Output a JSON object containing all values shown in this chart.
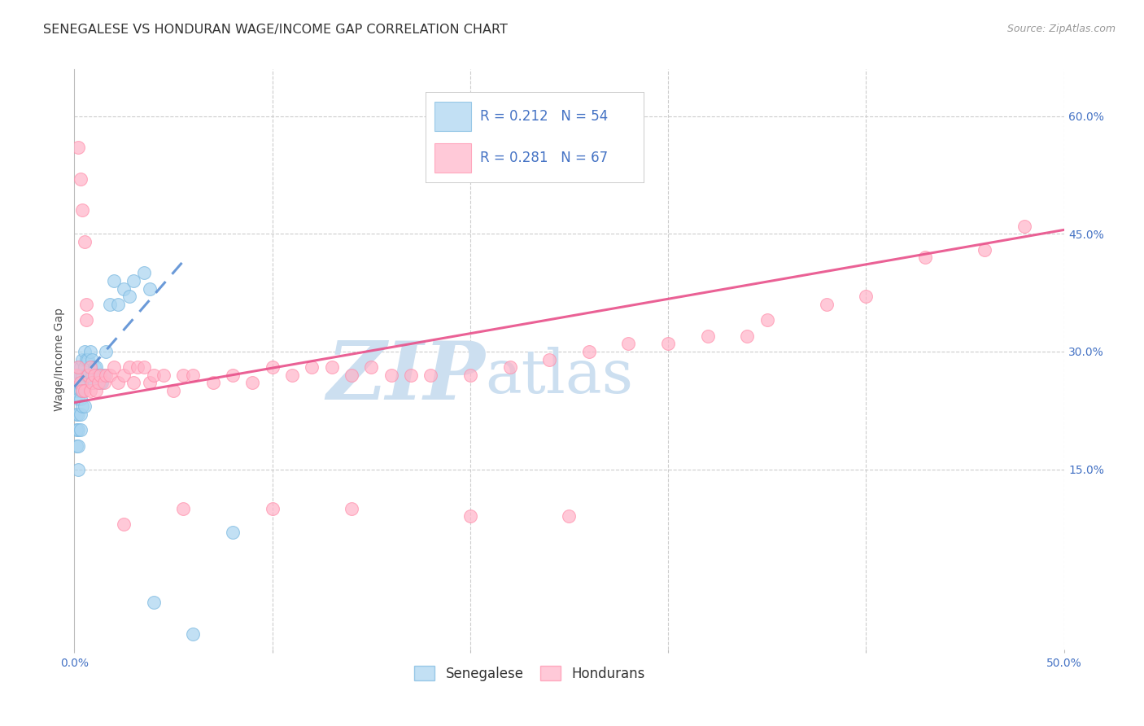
{
  "title": "SENEGALESE VS HONDURAN WAGE/INCOME GAP CORRELATION CHART",
  "source": "Source: ZipAtlas.com",
  "ylabel": "Wage/Income Gap",
  "xlim": [
    0.0,
    0.5
  ],
  "ylim": [
    -0.08,
    0.66
  ],
  "xticks": [
    0.0,
    0.1,
    0.2,
    0.3,
    0.4,
    0.5
  ],
  "xtick_labels_show": [
    "0.0%",
    "",
    "",
    "",
    "",
    "50.0%"
  ],
  "ytick_positions": [
    0.15,
    0.3,
    0.45,
    0.6
  ],
  "ytick_labels": [
    "15.0%",
    "30.0%",
    "45.0%",
    "60.0%"
  ],
  "sen_color": "#a8d4f0",
  "hon_color": "#ffb3c8",
  "sen_edge": "#7ab8e0",
  "hon_edge": "#ff8fab",
  "sen_trend_color": "#5b8fd4",
  "hon_trend_color": "#e8508a",
  "bg_color": "#ffffff",
  "grid_color": "#cccccc",
  "title_color": "#333333",
  "source_color": "#999999",
  "axis_tick_color": "#4472c4",
  "legend_text_color": "#4472c4",
  "watermark_color": "#ccdff0",
  "sen_R": "0.212",
  "sen_N": "54",
  "hon_R": "0.281",
  "hon_N": "67",
  "title_fontsize": 11.5,
  "source_fontsize": 9,
  "tick_fontsize": 10,
  "ylabel_fontsize": 10,
  "legend_fontsize": 12,
  "watermark_zip_size": 72,
  "watermark_atlas_size": 72,
  "sen_x": [
    0.001,
    0.001,
    0.001,
    0.001,
    0.001,
    0.002,
    0.002,
    0.002,
    0.002,
    0.002,
    0.002,
    0.002,
    0.003,
    0.003,
    0.003,
    0.003,
    0.003,
    0.003,
    0.004,
    0.004,
    0.004,
    0.004,
    0.005,
    0.005,
    0.005,
    0.005,
    0.006,
    0.006,
    0.007,
    0.007,
    0.008,
    0.008,
    0.008,
    0.009,
    0.009,
    0.01,
    0.01,
    0.011,
    0.012,
    0.013,
    0.014,
    0.015,
    0.016,
    0.018,
    0.02,
    0.022,
    0.025,
    0.028,
    0.03,
    0.035,
    0.038,
    0.04,
    0.06,
    0.08
  ],
  "sen_y": [
    0.27,
    0.25,
    0.22,
    0.2,
    0.18,
    0.28,
    0.26,
    0.24,
    0.22,
    0.2,
    0.18,
    0.15,
    0.28,
    0.27,
    0.25,
    0.24,
    0.22,
    0.2,
    0.29,
    0.27,
    0.25,
    0.23,
    0.3,
    0.28,
    0.26,
    0.23,
    0.29,
    0.27,
    0.29,
    0.27,
    0.3,
    0.28,
    0.26,
    0.29,
    0.27,
    0.28,
    0.26,
    0.28,
    0.27,
    0.26,
    0.26,
    0.27,
    0.3,
    0.36,
    0.39,
    0.36,
    0.38,
    0.37,
    0.39,
    0.4,
    0.38,
    -0.02,
    -0.06,
    0.07
  ],
  "hon_x": [
    0.001,
    0.002,
    0.002,
    0.003,
    0.003,
    0.004,
    0.004,
    0.005,
    0.005,
    0.006,
    0.006,
    0.007,
    0.008,
    0.008,
    0.009,
    0.01,
    0.011,
    0.012,
    0.013,
    0.015,
    0.016,
    0.018,
    0.02,
    0.022,
    0.025,
    0.028,
    0.03,
    0.032,
    0.035,
    0.038,
    0.04,
    0.045,
    0.05,
    0.055,
    0.06,
    0.07,
    0.08,
    0.09,
    0.1,
    0.11,
    0.12,
    0.13,
    0.14,
    0.15,
    0.16,
    0.17,
    0.18,
    0.2,
    0.22,
    0.24,
    0.26,
    0.28,
    0.3,
    0.32,
    0.35,
    0.38,
    0.4,
    0.43,
    0.46,
    0.48,
    0.055,
    0.1,
    0.14,
    0.2,
    0.25,
    0.34,
    0.025
  ],
  "hon_y": [
    0.27,
    0.56,
    0.28,
    0.52,
    0.26,
    0.48,
    0.25,
    0.44,
    0.25,
    0.36,
    0.34,
    0.27,
    0.28,
    0.25,
    0.26,
    0.27,
    0.25,
    0.26,
    0.27,
    0.26,
    0.27,
    0.27,
    0.28,
    0.26,
    0.27,
    0.28,
    0.26,
    0.28,
    0.28,
    0.26,
    0.27,
    0.27,
    0.25,
    0.27,
    0.27,
    0.26,
    0.27,
    0.26,
    0.28,
    0.27,
    0.28,
    0.28,
    0.27,
    0.28,
    0.27,
    0.27,
    0.27,
    0.27,
    0.28,
    0.29,
    0.3,
    0.31,
    0.31,
    0.32,
    0.34,
    0.36,
    0.37,
    0.42,
    0.43,
    0.46,
    0.1,
    0.1,
    0.1,
    0.09,
    0.09,
    0.32,
    0.08
  ],
  "sen_trend_x": [
    0.0,
    0.055
  ],
  "sen_trend_y": [
    0.255,
    0.415
  ],
  "hon_trend_x": [
    0.0,
    0.5
  ],
  "hon_trend_y": [
    0.235,
    0.455
  ]
}
